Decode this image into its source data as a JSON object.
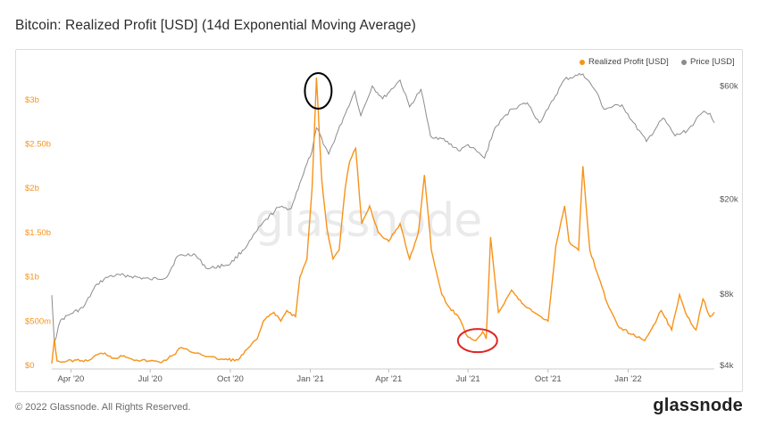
{
  "header": {
    "title": "Bitcoin: Realized Profit [USD] (14d Exponential Moving Average)"
  },
  "footer": {
    "copyright": "© 2022 Glassnode. All Rights Reserved.",
    "logo": "glassnode"
  },
  "watermark": "glassnode",
  "colors": {
    "profit": "#f7931a",
    "price": "#8c8c8c",
    "black_circle": "#000000",
    "red_circle": "#e02424"
  },
  "chart_data": {
    "type": "line",
    "title": "Bitcoin: Realized Profit [USD] (14d Exponential Moving Average)",
    "legend_placement": "top-right",
    "grid": false,
    "x_ticks": [
      "Apr '20",
      "Jul '20",
      "Oct '20",
      "Jan '21",
      "Apr '21",
      "Jul '21",
      "Oct '21",
      "Jan '22"
    ],
    "y_left": {
      "range": [
        0,
        3.3
      ],
      "ticks": [
        "$0",
        "$500m",
        "$1b",
        "$1.50b",
        "$2b",
        "$2.50b",
        "$3b"
      ]
    },
    "y_right": {
      "scale": "log",
      "range": [
        4000,
        68000
      ],
      "ticks": [
        "$4k",
        "$8k",
        "$20k",
        "$60k"
      ]
    },
    "series": [
      {
        "name": "Realized Profit [USD]",
        "axis": "left",
        "unit": "USD billions",
        "points": [
          [
            "2020-03-10",
            0.02
          ],
          [
            "2020-03-13",
            0.3
          ],
          [
            "2020-03-16",
            0.05
          ],
          [
            "2020-03-25",
            0.04
          ],
          [
            "2020-04-05",
            0.06
          ],
          [
            "2020-04-20",
            0.05
          ],
          [
            "2020-05-01",
            0.12
          ],
          [
            "2020-05-10",
            0.14
          ],
          [
            "2020-05-20",
            0.08
          ],
          [
            "2020-06-01",
            0.11
          ],
          [
            "2020-06-15",
            0.06
          ],
          [
            "2020-07-01",
            0.05
          ],
          [
            "2020-07-15",
            0.04
          ],
          [
            "2020-07-28",
            0.12
          ],
          [
            "2020-08-05",
            0.2
          ],
          [
            "2020-08-15",
            0.16
          ],
          [
            "2020-08-25",
            0.14
          ],
          [
            "2020-09-05",
            0.1
          ],
          [
            "2020-09-20",
            0.07
          ],
          [
            "2020-10-10",
            0.06
          ],
          [
            "2020-10-22",
            0.2
          ],
          [
            "2020-11-01",
            0.3
          ],
          [
            "2020-11-08",
            0.5
          ],
          [
            "2020-11-20",
            0.6
          ],
          [
            "2020-11-28",
            0.5
          ],
          [
            "2020-12-05",
            0.62
          ],
          [
            "2020-12-15",
            0.55
          ],
          [
            "2020-12-20",
            1.0
          ],
          [
            "2020-12-28",
            1.2
          ],
          [
            "2021-01-03",
            2.0
          ],
          [
            "2021-01-08",
            3.25
          ],
          [
            "2021-01-14",
            2.1
          ],
          [
            "2021-01-20",
            1.55
          ],
          [
            "2021-01-27",
            1.2
          ],
          [
            "2021-02-03",
            1.3
          ],
          [
            "2021-02-10",
            2.0
          ],
          [
            "2021-02-15",
            2.3
          ],
          [
            "2021-02-22",
            2.45
          ],
          [
            "2021-03-01",
            1.6
          ],
          [
            "2021-03-10",
            1.8
          ],
          [
            "2021-03-20",
            1.5
          ],
          [
            "2021-04-01",
            1.4
          ],
          [
            "2021-04-14",
            1.6
          ],
          [
            "2021-04-25",
            1.2
          ],
          [
            "2021-05-05",
            1.5
          ],
          [
            "2021-05-12",
            2.15
          ],
          [
            "2021-05-20",
            1.3
          ],
          [
            "2021-06-01",
            0.8
          ],
          [
            "2021-06-10",
            0.65
          ],
          [
            "2021-06-20",
            0.55
          ],
          [
            "2021-07-01",
            0.32
          ],
          [
            "2021-07-10",
            0.28
          ],
          [
            "2021-07-18",
            0.38
          ],
          [
            "2021-07-22",
            0.3
          ],
          [
            "2021-07-27",
            1.45
          ],
          [
            "2021-08-05",
            0.6
          ],
          [
            "2021-08-20",
            0.85
          ],
          [
            "2021-09-01",
            0.7
          ],
          [
            "2021-09-15",
            0.6
          ],
          [
            "2021-10-01",
            0.5
          ],
          [
            "2021-10-10",
            1.35
          ],
          [
            "2021-10-20",
            1.8
          ],
          [
            "2021-10-25",
            1.4
          ],
          [
            "2021-11-05",
            1.3
          ],
          [
            "2021-11-10",
            2.25
          ],
          [
            "2021-11-18",
            1.3
          ],
          [
            "2021-11-28",
            1.0
          ],
          [
            "2021-12-08",
            0.7
          ],
          [
            "2021-12-20",
            0.45
          ],
          [
            "2022-01-05",
            0.35
          ],
          [
            "2022-01-20",
            0.28
          ],
          [
            "2022-01-30",
            0.45
          ],
          [
            "2022-02-08",
            0.62
          ],
          [
            "2022-02-20",
            0.4
          ],
          [
            "2022-03-01",
            0.8
          ],
          [
            "2022-03-10",
            0.55
          ],
          [
            "2022-03-20",
            0.4
          ],
          [
            "2022-03-28",
            0.75
          ],
          [
            "2022-04-05",
            0.55
          ],
          [
            "2022-04-10",
            0.6
          ]
        ]
      },
      {
        "name": "Price [USD]",
        "axis": "right",
        "unit": "USD",
        "points": [
          [
            "2020-03-10",
            7900
          ],
          [
            "2020-03-13",
            5000
          ],
          [
            "2020-03-20",
            6200
          ],
          [
            "2020-04-01",
            6600
          ],
          [
            "2020-04-15",
            7000
          ],
          [
            "2020-05-01",
            8800
          ],
          [
            "2020-05-15",
            9500
          ],
          [
            "2020-06-01",
            9600
          ],
          [
            "2020-07-01",
            9200
          ],
          [
            "2020-07-20",
            9400
          ],
          [
            "2020-08-01",
            11500
          ],
          [
            "2020-08-20",
            11800
          ],
          [
            "2020-09-05",
            10200
          ],
          [
            "2020-10-01",
            10700
          ],
          [
            "2020-10-21",
            12900
          ],
          [
            "2020-11-05",
            15500
          ],
          [
            "2020-11-25",
            18500
          ],
          [
            "2020-12-10",
            18300
          ],
          [
            "2020-12-20",
            23500
          ],
          [
            "2021-01-03",
            32000
          ],
          [
            "2021-01-08",
            40000
          ],
          [
            "2021-01-22",
            31000
          ],
          [
            "2021-02-08",
            44000
          ],
          [
            "2021-02-21",
            57000
          ],
          [
            "2021-02-28",
            45000
          ],
          [
            "2021-03-13",
            60000
          ],
          [
            "2021-03-25",
            53000
          ],
          [
            "2021-04-14",
            63500
          ],
          [
            "2021-04-25",
            49000
          ],
          [
            "2021-05-08",
            58000
          ],
          [
            "2021-05-19",
            37000
          ],
          [
            "2021-06-01",
            36000
          ],
          [
            "2021-06-22",
            32000
          ],
          [
            "2021-07-01",
            34000
          ],
          [
            "2021-07-20",
            29800
          ],
          [
            "2021-08-01",
            40000
          ],
          [
            "2021-08-20",
            48000
          ],
          [
            "2021-09-07",
            51000
          ],
          [
            "2021-09-21",
            42000
          ],
          [
            "2021-10-01",
            48000
          ],
          [
            "2021-10-20",
            64000
          ],
          [
            "2021-11-10",
            67500
          ],
          [
            "2021-11-25",
            57000
          ],
          [
            "2021-12-04",
            48000
          ],
          [
            "2021-12-25",
            50000
          ],
          [
            "2022-01-05",
            43000
          ],
          [
            "2022-01-22",
            35000
          ],
          [
            "2022-02-10",
            44000
          ],
          [
            "2022-02-24",
            37000
          ],
          [
            "2022-03-10",
            39000
          ],
          [
            "2022-03-29",
            47000
          ],
          [
            "2022-04-05",
            46000
          ],
          [
            "2022-04-10",
            42000
          ]
        ]
      }
    ],
    "annotations": [
      {
        "type": "circle",
        "color": "black",
        "at": "2021-01-08",
        "series": "Realized Profit [USD]"
      },
      {
        "type": "circle",
        "color": "red",
        "at": "2021-07-10",
        "series": "Realized Profit [USD]"
      }
    ]
  }
}
